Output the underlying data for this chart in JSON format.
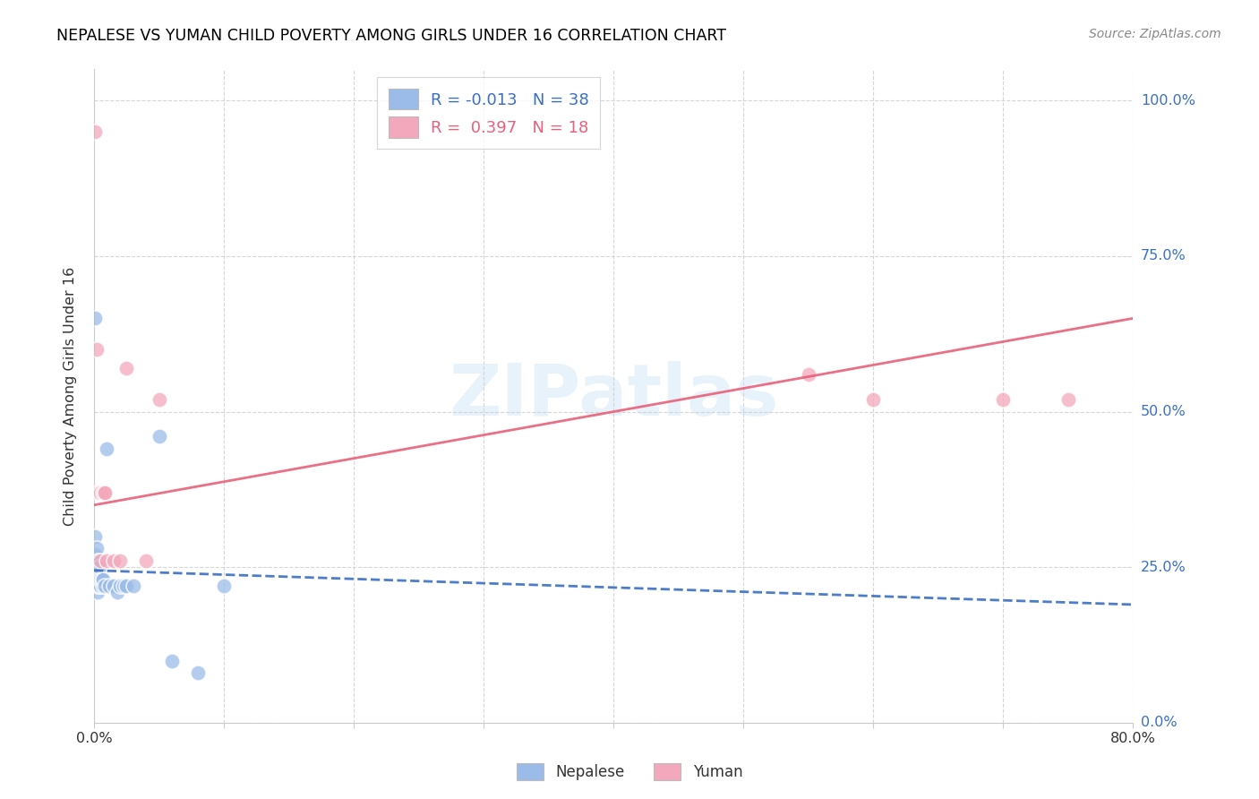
{
  "title": "NEPALESE VS YUMAN CHILD POVERTY AMONG GIRLS UNDER 16 CORRELATION CHART",
  "source": "Source: ZipAtlas.com",
  "ylabel": "Child Poverty Among Girls Under 16",
  "xlim": [
    0.0,
    0.8
  ],
  "ylim": [
    0.0,
    1.05
  ],
  "yticks": [
    0.0,
    0.25,
    0.5,
    0.75,
    1.0
  ],
  "ytick_labels": [
    "0.0%",
    "25.0%",
    "50.0%",
    "75.0%",
    "100.0%"
  ],
  "xticks": [
    0.0,
    0.1,
    0.2,
    0.3,
    0.4,
    0.5,
    0.6,
    0.7,
    0.8
  ],
  "xtick_labels": [
    "0.0%",
    "",
    "",
    "",
    "",
    "",
    "",
    "",
    "80.0%"
  ],
  "legend_labels": [
    "R = -0.013   N = 38",
    "R =  0.397   N = 18"
  ],
  "nepalese_color": "#9bbce8",
  "yuman_color": "#f4a8bc",
  "nepalese_line_color": "#3a6fc4",
  "yuman_line_color": "#e8607a",
  "watermark": "ZIPatlas",
  "nepalese_x": [
    0.001,
    0.001,
    0.001,
    0.001,
    0.001,
    0.002,
    0.002,
    0.002,
    0.002,
    0.002,
    0.003,
    0.003,
    0.003,
    0.003,
    0.003,
    0.003,
    0.004,
    0.004,
    0.004,
    0.004,
    0.005,
    0.005,
    0.006,
    0.007,
    0.007,
    0.008,
    0.01,
    0.012,
    0.015,
    0.018,
    0.02,
    0.023,
    0.025,
    0.03,
    0.05,
    0.06,
    0.08,
    0.1
  ],
  "nepalese_y": [
    0.22,
    0.24,
    0.27,
    0.3,
    0.65,
    0.22,
    0.23,
    0.24,
    0.25,
    0.28,
    0.21,
    0.22,
    0.23,
    0.24,
    0.25,
    0.26,
    0.22,
    0.23,
    0.24,
    0.25,
    0.22,
    0.23,
    0.23,
    0.22,
    0.23,
    0.22,
    0.44,
    0.22,
    0.22,
    0.21,
    0.22,
    0.22,
    0.22,
    0.22,
    0.46,
    0.1,
    0.08,
    0.22
  ],
  "yuman_x": [
    0.001,
    0.002,
    0.003,
    0.005,
    0.005,
    0.007,
    0.008,
    0.008,
    0.01,
    0.015,
    0.02,
    0.025,
    0.04,
    0.05,
    0.55,
    0.6,
    0.7,
    0.75
  ],
  "yuman_y": [
    0.95,
    0.6,
    0.37,
    0.37,
    0.26,
    0.37,
    0.37,
    0.37,
    0.26,
    0.26,
    0.26,
    0.57,
    0.26,
    0.52,
    0.56,
    0.52,
    0.52,
    0.52
  ],
  "nep_line_x": [
    0.0,
    0.8
  ],
  "nep_line_y": [
    0.245,
    0.19
  ],
  "yum_line_x": [
    0.0,
    0.8
  ],
  "yum_line_y": [
    0.35,
    0.65
  ]
}
